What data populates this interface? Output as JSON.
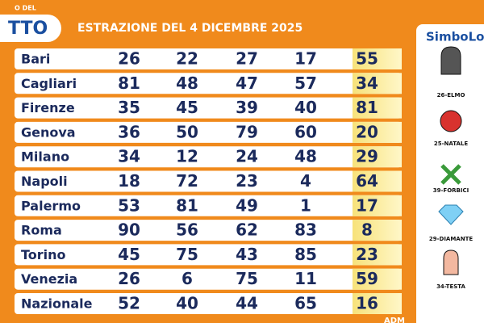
{
  "header": {
    "logo_top": "O DEL",
    "logo_main": "TTO",
    "title": "ESTRAZIONE DEL 4 DICEMBRE 2025"
  },
  "table": {
    "rows": [
      [
        "Bari",
        26,
        22,
        27,
        17,
        55
      ],
      [
        "Cagliari",
        81,
        48,
        47,
        57,
        34
      ],
      [
        "Firenze",
        35,
        45,
        39,
        40,
        81
      ],
      [
        "Genova",
        36,
        50,
        79,
        60,
        20
      ],
      [
        "Milano",
        34,
        12,
        24,
        48,
        29
      ],
      [
        "Napoli",
        18,
        72,
        23,
        4,
        64
      ],
      [
        "Palermo",
        53,
        81,
        49,
        1,
        17
      ],
      [
        "Roma",
        90,
        56,
        62,
        83,
        8
      ],
      [
        "Torino",
        45,
        75,
        43,
        85,
        23
      ],
      [
        "Venezia",
        26,
        6,
        75,
        11,
        59
      ],
      [
        "Nazionale",
        52,
        40,
        44,
        65,
        16
      ]
    ]
  },
  "sidebar": {
    "title": "SimboLot",
    "symbols": [
      "26-ELMO",
      "25-NATALE",
      "39-FORBICI",
      "29-DIAMANTE",
      "34-TESTA"
    ]
  },
  "footer": {
    "brand": "ADM"
  }
}
